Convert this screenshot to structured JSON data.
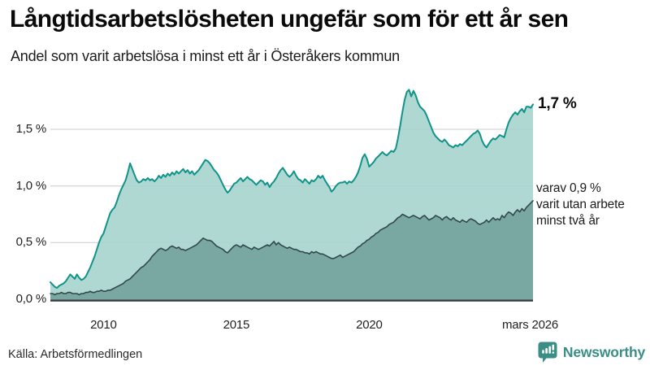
{
  "header": {
    "title": "Långtidsarbetslösheten ungefär som för ett år sen",
    "subtitle": "Andel som varit arbetslösa i minst ett år i Österåkers kommun"
  },
  "annotations": {
    "latest_value": "1,7 %",
    "secondary_line1": "varav 0,9 %",
    "secondary_line2": "varit utan arbete",
    "secondary_line3": "minst två år"
  },
  "footer": {
    "source": "Källa: Arbetsförmedlingen",
    "brand": "Newsworthy"
  },
  "colors": {
    "accent_teal": "#0e9488",
    "light_fill": "#a5d3cd",
    "dark_fill": "#79a7a1",
    "dark_line": "#32484c",
    "baseline": "#2f3c3e",
    "gridline": "#d7d7db",
    "brand_teal": "#3a8e86"
  },
  "chart_data": {
    "type": "area",
    "title": "Långtidsarbetslösheten ungefär som för ett år sen",
    "subtitle": "Andel som varit arbetslösa i minst ett år i Österåkers kommun",
    "unit": "percent",
    "x_start_year": 2008.0,
    "x_step_years": 0.0833333,
    "xlim": [
      2008.0,
      2026.1667
    ],
    "ylim": [
      0,
      1.9
    ],
    "grid": "horizontal",
    "legend_position": "right-annotations",
    "yticks": [
      {
        "value": 0.0,
        "label": "0,0 %"
      },
      {
        "value": 0.5,
        "label": "0,5 %"
      },
      {
        "value": 1.0,
        "label": "1,0 %"
      },
      {
        "value": 1.5,
        "label": "1,5 %"
      }
    ],
    "xticks": [
      {
        "value": 2010.0,
        "label": "2010"
      },
      {
        "value": 2015.0,
        "label": "2015"
      },
      {
        "value": 2020.0,
        "label": "2020"
      },
      {
        "value": 2026.06,
        "label": "mars 2026"
      }
    ],
    "series": [
      {
        "name": "Arbetslösa minst ett år",
        "latest": 1.7,
        "line_color": "#0e9488",
        "fill_color": "#a5d3cd",
        "values": [
          0.15,
          0.13,
          0.11,
          0.1,
          0.12,
          0.13,
          0.14,
          0.16,
          0.19,
          0.22,
          0.2,
          0.18,
          0.22,
          0.19,
          0.17,
          0.18,
          0.2,
          0.24,
          0.28,
          0.33,
          0.38,
          0.44,
          0.5,
          0.55,
          0.58,
          0.64,
          0.7,
          0.76,
          0.79,
          0.81,
          0.86,
          0.92,
          0.97,
          1.01,
          1.05,
          1.12,
          1.2,
          1.15,
          1.1,
          1.05,
          1.03,
          1.04,
          1.06,
          1.05,
          1.07,
          1.05,
          1.06,
          1.04,
          1.06,
          1.09,
          1.07,
          1.1,
          1.08,
          1.11,
          1.09,
          1.12,
          1.1,
          1.13,
          1.11,
          1.13,
          1.15,
          1.12,
          1.14,
          1.11,
          1.13,
          1.1,
          1.12,
          1.14,
          1.17,
          1.2,
          1.23,
          1.22,
          1.2,
          1.17,
          1.14,
          1.12,
          1.09,
          1.05,
          1.01,
          0.97,
          0.94,
          0.96,
          0.99,
          1.02,
          1.03,
          1.05,
          1.07,
          1.04,
          1.06,
          1.08,
          1.06,
          1.05,
          1.03,
          1.01,
          1.03,
          1.05,
          1.04,
          1.01,
          1.03,
          0.99,
          1.02,
          1.04,
          1.07,
          1.11,
          1.14,
          1.16,
          1.13,
          1.1,
          1.08,
          1.1,
          1.13,
          1.09,
          1.06,
          1.05,
          1.03,
          1.06,
          1.04,
          1.02,
          1.05,
          1.04,
          1.06,
          1.09,
          1.07,
          1.09,
          1.05,
          1.02,
          0.99,
          0.95,
          0.97,
          1.0,
          1.02,
          1.03,
          1.03,
          1.04,
          1.02,
          1.04,
          1.03,
          1.05,
          1.08,
          1.12,
          1.18,
          1.25,
          1.28,
          1.24,
          1.17,
          1.19,
          1.21,
          1.24,
          1.26,
          1.28,
          1.3,
          1.28,
          1.27,
          1.29,
          1.31,
          1.3,
          1.33,
          1.42,
          1.53,
          1.65,
          1.76,
          1.83,
          1.85,
          1.79,
          1.84,
          1.8,
          1.74,
          1.7,
          1.68,
          1.66,
          1.62,
          1.57,
          1.52,
          1.47,
          1.44,
          1.42,
          1.4,
          1.39,
          1.41,
          1.39,
          1.36,
          1.35,
          1.34,
          1.36,
          1.35,
          1.37,
          1.36,
          1.38,
          1.4,
          1.42,
          1.44,
          1.46,
          1.47,
          1.49,
          1.46,
          1.4,
          1.36,
          1.34,
          1.37,
          1.4,
          1.42,
          1.41,
          1.43,
          1.45,
          1.44,
          1.43,
          1.5,
          1.56,
          1.6,
          1.63,
          1.65,
          1.63,
          1.66,
          1.68,
          1.65,
          1.7,
          1.7,
          1.69,
          1.72
        ]
      },
      {
        "name": "Varav utan arbete minst två år",
        "latest": 0.9,
        "line_color": "#32484c",
        "fill_color": "#79a7a1",
        "values": [
          0.05,
          0.05,
          0.04,
          0.05,
          0.05,
          0.06,
          0.05,
          0.05,
          0.06,
          0.06,
          0.05,
          0.05,
          0.05,
          0.04,
          0.05,
          0.05,
          0.06,
          0.06,
          0.07,
          0.06,
          0.06,
          0.07,
          0.07,
          0.08,
          0.07,
          0.07,
          0.08,
          0.08,
          0.09,
          0.1,
          0.11,
          0.12,
          0.13,
          0.14,
          0.16,
          0.17,
          0.18,
          0.2,
          0.22,
          0.24,
          0.26,
          0.28,
          0.29,
          0.31,
          0.33,
          0.35,
          0.38,
          0.4,
          0.42,
          0.44,
          0.45,
          0.44,
          0.43,
          0.44,
          0.46,
          0.47,
          0.46,
          0.45,
          0.46,
          0.44,
          0.44,
          0.43,
          0.44,
          0.45,
          0.46,
          0.47,
          0.48,
          0.5,
          0.52,
          0.54,
          0.53,
          0.52,
          0.52,
          0.51,
          0.49,
          0.47,
          0.46,
          0.45,
          0.44,
          0.42,
          0.41,
          0.43,
          0.45,
          0.47,
          0.48,
          0.47,
          0.46,
          0.48,
          0.47,
          0.46,
          0.45,
          0.44,
          0.46,
          0.45,
          0.44,
          0.45,
          0.46,
          0.47,
          0.48,
          0.47,
          0.49,
          0.51,
          0.48,
          0.5,
          0.48,
          0.47,
          0.46,
          0.45,
          0.46,
          0.45,
          0.44,
          0.44,
          0.43,
          0.42,
          0.42,
          0.41,
          0.41,
          0.4,
          0.42,
          0.41,
          0.42,
          0.41,
          0.4,
          0.4,
          0.39,
          0.38,
          0.37,
          0.36,
          0.36,
          0.37,
          0.38,
          0.39,
          0.37,
          0.38,
          0.39,
          0.4,
          0.41,
          0.42,
          0.44,
          0.46,
          0.47,
          0.49,
          0.5,
          0.52,
          0.53,
          0.55,
          0.56,
          0.58,
          0.59,
          0.61,
          0.62,
          0.63,
          0.64,
          0.66,
          0.67,
          0.68,
          0.7,
          0.72,
          0.73,
          0.75,
          0.74,
          0.73,
          0.72,
          0.73,
          0.74,
          0.73,
          0.72,
          0.71,
          0.73,
          0.74,
          0.72,
          0.7,
          0.71,
          0.72,
          0.74,
          0.73,
          0.72,
          0.7,
          0.72,
          0.73,
          0.71,
          0.7,
          0.72,
          0.7,
          0.69,
          0.68,
          0.7,
          0.69,
          0.68,
          0.7,
          0.71,
          0.7,
          0.69,
          0.67,
          0.66,
          0.67,
          0.68,
          0.7,
          0.68,
          0.7,
          0.72,
          0.7,
          0.71,
          0.7,
          0.74,
          0.72,
          0.75,
          0.77,
          0.76,
          0.74,
          0.77,
          0.79,
          0.77,
          0.8,
          0.78,
          0.81,
          0.83,
          0.85,
          0.87
        ]
      }
    ]
  }
}
